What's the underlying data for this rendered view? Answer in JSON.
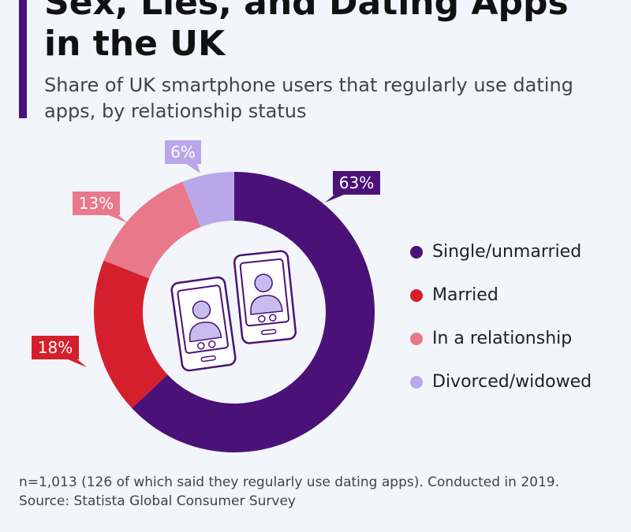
{
  "header": {
    "title": "Sex, Lies, and Dating Apps\nin the UK",
    "subtitle": "Share of UK smartphone users that regularly use dating apps, by relationship status"
  },
  "chart_data": {
    "type": "pie",
    "variant": "donut",
    "title": "Sex, Lies, and Dating Apps in the UK",
    "subtitle": "Share of UK smartphone users that regularly use dating apps, by relationship status",
    "unit": "%",
    "legend_position": "right",
    "slices": [
      {
        "name": "Single/unmarried",
        "value": 63,
        "label": "63%",
        "color": "#4a1278"
      },
      {
        "name": "Married",
        "value": 18,
        "label": "18%",
        "color": "#d61f2c"
      },
      {
        "name": "In a relationship",
        "value": 13,
        "label": "13%",
        "color": "#e8788a"
      },
      {
        "name": "Divorced/widowed",
        "value": 6,
        "label": "6%",
        "color": "#b9a7ea"
      }
    ],
    "center_graphic": [
      "phone-profile-icon",
      "phone-profile-icon"
    ]
  },
  "footer": {
    "note": "n=1,013 (126 of which said they regularly use dating apps). Conducted in 2019.",
    "source": "Source: Statista Global Consumer Survey"
  }
}
